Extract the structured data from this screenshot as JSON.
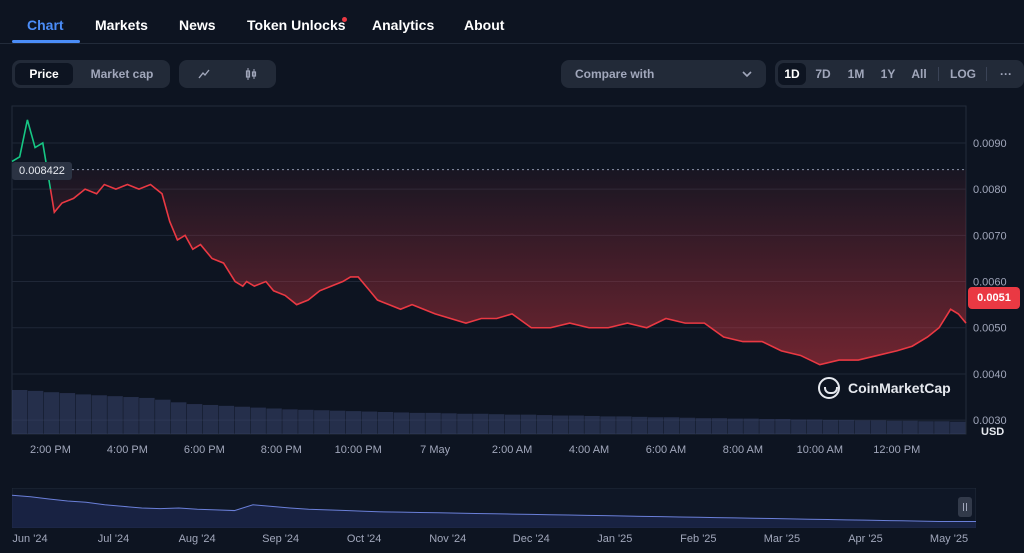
{
  "tabs": [
    {
      "label": "Chart",
      "active": true
    },
    {
      "label": "Markets"
    },
    {
      "label": "News"
    },
    {
      "label": "Token Unlocks",
      "notification_dot": true
    },
    {
      "label": "Analytics"
    },
    {
      "label": "About"
    }
  ],
  "controls": {
    "metric_toggle": [
      "Price",
      "Market cap"
    ],
    "metric_selected": "Price",
    "chart_type_icons": [
      "line-chart-icon",
      "candlestick-icon"
    ],
    "compare_label": "Compare with",
    "ranges": [
      "1D",
      "7D",
      "1M",
      "1Y",
      "All",
      "LOG"
    ],
    "range_selected": "1D",
    "more_label": "···"
  },
  "chart": {
    "current_price": "0.0051",
    "hover_price": "0.008422",
    "currency": "USD",
    "watermark": "CoinMarketCap",
    "colors": {
      "down": "#ea3943",
      "up": "#16c784",
      "volume": "#3a4670",
      "bg": "#0d1421"
    }
  },
  "chart_data": {
    "type": "line",
    "title": "",
    "y_ticks": [
      "0.0090",
      "0.0080",
      "0.0070",
      "0.0060",
      "0.0050",
      "0.0040",
      "0.0030"
    ],
    "y_ticks_values": [
      0.009,
      0.008,
      0.007,
      0.006,
      0.005,
      0.004,
      0.003
    ],
    "ylim": [
      0.0027,
      0.0098
    ],
    "x_ticks": [
      "2:00 PM",
      "4:00 PM",
      "6:00 PM",
      "8:00 PM",
      "10:00 PM",
      "7 May",
      "2:00 AM",
      "4:00 AM",
      "6:00 AM",
      "8:00 AM",
      "10:00 AM",
      "12:00 PM"
    ],
    "x_ticks_hours": [
      14,
      16,
      18,
      20,
      22,
      24,
      26,
      28,
      30,
      32,
      34,
      36
    ],
    "xlim_hours": [
      13.0,
      37.8
    ],
    "series": [
      {
        "name": "Price",
        "t": [
          13.0,
          13.2,
          13.4,
          13.6,
          13.8,
          14.0,
          14.1,
          14.3,
          14.6,
          14.9,
          15.2,
          15.4,
          15.7,
          16.0,
          16.3,
          16.6,
          16.9,
          17.1,
          17.3,
          17.5,
          17.7,
          17.9,
          18.2,
          18.5,
          18.8,
          19.0,
          19.1,
          19.3,
          19.6,
          19.8,
          20.1,
          20.4,
          20.7,
          21.0,
          21.3,
          21.6,
          21.8,
          22.0,
          22.3,
          22.5,
          22.8,
          23.1,
          23.4,
          23.7,
          24.0,
          24.4,
          24.8,
          25.2,
          25.6,
          26.0,
          26.5,
          27.0,
          27.5,
          28.0,
          28.5,
          29.0,
          29.5,
          30.0,
          30.5,
          31.0,
          31.5,
          32.0,
          32.5,
          33.0,
          33.5,
          34.0,
          34.5,
          35.0,
          35.5,
          36.0,
          36.4,
          36.8,
          37.1,
          37.4,
          37.6,
          37.8
        ],
        "values": [
          0.0086,
          0.0087,
          0.0095,
          0.0089,
          0.009,
          0.008,
          0.0075,
          0.0077,
          0.0078,
          0.008,
          0.0079,
          0.0081,
          0.008,
          0.0081,
          0.008,
          0.0081,
          0.0079,
          0.0073,
          0.0069,
          0.007,
          0.0067,
          0.0068,
          0.0065,
          0.0064,
          0.006,
          0.0059,
          0.006,
          0.0059,
          0.006,
          0.0058,
          0.0057,
          0.0055,
          0.0056,
          0.0058,
          0.0059,
          0.006,
          0.0061,
          0.0061,
          0.0058,
          0.0056,
          0.0055,
          0.0054,
          0.0055,
          0.0054,
          0.0053,
          0.0052,
          0.0051,
          0.0052,
          0.0052,
          0.0053,
          0.005,
          0.005,
          0.0051,
          0.005,
          0.005,
          0.0051,
          0.005,
          0.0052,
          0.0051,
          0.0051,
          0.0048,
          0.0047,
          0.0047,
          0.0045,
          0.0044,
          0.0042,
          0.0043,
          0.0043,
          0.0044,
          0.0045,
          0.0046,
          0.0048,
          0.005,
          0.0054,
          0.0053,
          0.0051
        ]
      }
    ],
    "volume": [
      1.0,
      0.98,
      0.95,
      0.93,
      0.9,
      0.88,
      0.86,
      0.84,
      0.82,
      0.78,
      0.72,
      0.68,
      0.66,
      0.64,
      0.62,
      0.6,
      0.58,
      0.56,
      0.55,
      0.54,
      0.53,
      0.52,
      0.51,
      0.5,
      0.49,
      0.48,
      0.48,
      0.47,
      0.46,
      0.46,
      0.45,
      0.44,
      0.44,
      0.43,
      0.42,
      0.42,
      0.41,
      0.4,
      0.4,
      0.39,
      0.38,
      0.38,
      0.37,
      0.36,
      0.36,
      0.35,
      0.35,
      0.34,
      0.34,
      0.33,
      0.33,
      0.32,
      0.32,
      0.31,
      0.31,
      0.3,
      0.3,
      0.29,
      0.29,
      0.28
    ],
    "navigator": {
      "months": [
        "Jun '24",
        "Jul '24",
        "Aug '24",
        "Sep '24",
        "Oct '24",
        "Nov '24",
        "Dec '24",
        "Jan '25",
        "Feb '25",
        "Mar '25",
        "Apr '25",
        "May '25"
      ],
      "values": [
        0.9,
        0.85,
        0.78,
        0.72,
        0.68,
        0.6,
        0.55,
        0.5,
        0.48,
        0.5,
        0.46,
        0.44,
        0.42,
        0.6,
        0.55,
        0.5,
        0.46,
        0.44,
        0.42,
        0.4,
        0.38,
        0.37,
        0.36,
        0.35,
        0.34,
        0.33,
        0.32,
        0.31,
        0.3,
        0.29,
        0.28,
        0.27,
        0.26,
        0.25,
        0.24,
        0.23,
        0.22,
        0.21,
        0.2,
        0.19,
        0.18,
        0.17,
        0.16,
        0.15,
        0.14,
        0.13,
        0.12,
        0.11,
        0.1,
        0.09,
        0.08,
        0.08,
        0.08
      ]
    }
  }
}
